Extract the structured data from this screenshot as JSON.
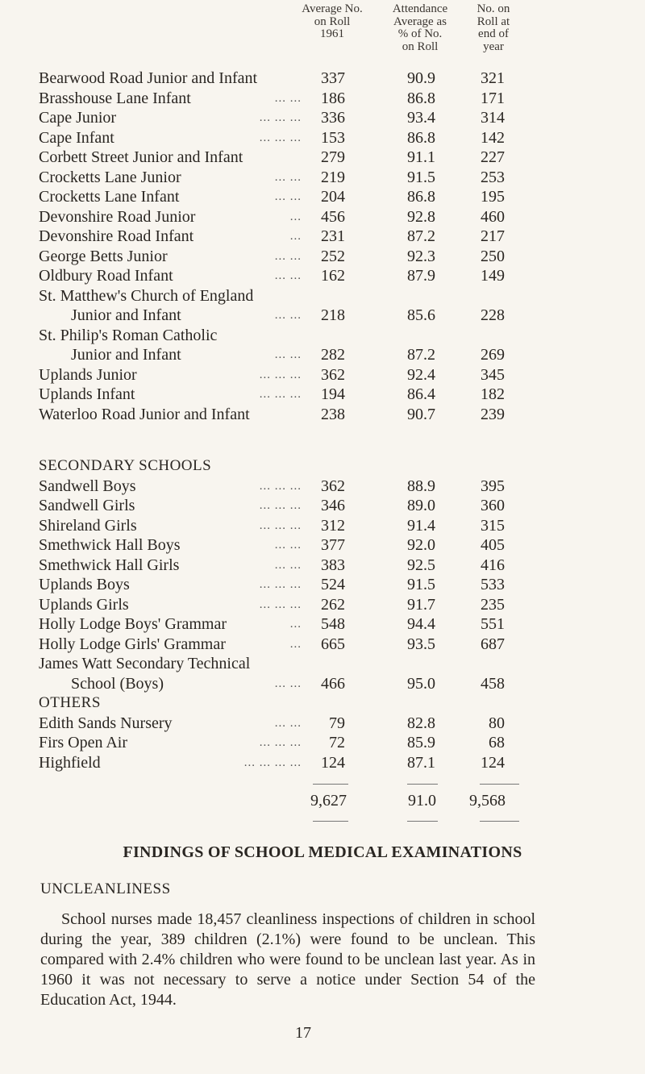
{
  "headers": {
    "col1": [
      "Average No.",
      "on Roll",
      "1961"
    ],
    "col2": [
      "Attendance",
      "Average as",
      "% of No.",
      "on Roll"
    ],
    "col3": [
      "No. on",
      "Roll at",
      "end of",
      "year"
    ]
  },
  "rows": [
    {
      "name": "Bearwood Road Junior and Infant",
      "leader": "",
      "avg_roll": "337",
      "attendance": "90.9",
      "end_roll": "321"
    },
    {
      "name": "Brasshouse Lane Infant",
      "leader": "... ...",
      "avg_roll": "186",
      "attendance": "86.8",
      "end_roll": "171"
    },
    {
      "name": "Cape Junior",
      "leader": "... ... ...",
      "avg_roll": "336",
      "attendance": "93.4",
      "end_roll": "314"
    },
    {
      "name": "Cape Infant",
      "leader": "... ... ...",
      "avg_roll": "153",
      "attendance": "86.8",
      "end_roll": "142"
    },
    {
      "name": "Corbett Street Junior and Infant",
      "leader": "",
      "avg_roll": "279",
      "attendance": "91.1",
      "end_roll": "227"
    },
    {
      "name": "Crocketts Lane Junior",
      "leader": "... ...",
      "avg_roll": "219",
      "attendance": "91.5",
      "end_roll": "253"
    },
    {
      "name": "Crocketts Lane Infant",
      "leader": "... ...",
      "avg_roll": "204",
      "attendance": "86.8",
      "end_roll": "195"
    },
    {
      "name": "Devonshire Road Junior",
      "leader": "...",
      "avg_roll": "456",
      "attendance": "92.8",
      "end_roll": "460"
    },
    {
      "name": "Devonshire Road Infant",
      "leader": "...",
      "avg_roll": "231",
      "attendance": "87.2",
      "end_roll": "217"
    },
    {
      "name": "George Betts Junior",
      "leader": "... ...",
      "avg_roll": "252",
      "attendance": "92.3",
      "end_roll": "250"
    },
    {
      "name": "Oldbury Road Infant",
      "leader": "... ...",
      "avg_roll": "162",
      "attendance": "87.9",
      "end_roll": "149"
    },
    {
      "name": "St. Matthew's Church of England",
      "leader": ""
    },
    {
      "name": "Junior and Infant",
      "leader": "... ...",
      "indent": true,
      "avg_roll": "218",
      "attendance": "85.6",
      "end_roll": "228"
    },
    {
      "name": "St. Philip's Roman Catholic",
      "leader": ""
    },
    {
      "name": "Junior and Infant",
      "leader": "... ...",
      "indent": true,
      "avg_roll": "282",
      "attendance": "87.2",
      "end_roll": "269"
    },
    {
      "name": "Uplands Junior",
      "leader": "... ... ...",
      "avg_roll": "362",
      "attendance": "92.4",
      "end_roll": "345"
    },
    {
      "name": "Uplands Infant",
      "leader": "... ... ...",
      "avg_roll": "194",
      "attendance": "86.4",
      "end_roll": "182"
    },
    {
      "name": "Waterloo Road Junior and Infant",
      "leader": "",
      "avg_roll": "238",
      "attendance": "90.7",
      "end_roll": "239"
    },
    {
      "gap": true
    },
    {
      "section": "SECONDARY SCHOOLS"
    },
    {
      "name": "Sandwell Boys",
      "leader": "... ... ...",
      "avg_roll": "362",
      "attendance": "88.9",
      "end_roll": "395"
    },
    {
      "name": "Sandwell Girls",
      "leader": "... ... ...",
      "avg_roll": "346",
      "attendance": "89.0",
      "end_roll": "360"
    },
    {
      "name": "Shireland Girls",
      "leader": "... ... ...",
      "avg_roll": "312",
      "attendance": "91.4",
      "end_roll": "315"
    },
    {
      "name": "Smethwick Hall Boys",
      "leader": "... ...",
      "avg_roll": "377",
      "attendance": "92.0",
      "end_roll": "405"
    },
    {
      "name": "Smethwick Hall Girls",
      "leader": "... ...",
      "avg_roll": "383",
      "attendance": "92.5",
      "end_roll": "416"
    },
    {
      "name": "Uplands Boys",
      "leader": "... ... ...",
      "avg_roll": "524",
      "attendance": "91.5",
      "end_roll": "533"
    },
    {
      "name": "Uplands Girls",
      "leader": "... ... ...",
      "avg_roll": "262",
      "attendance": "91.7",
      "end_roll": "235"
    },
    {
      "name": "Holly Lodge Boys' Grammar",
      "leader": "...",
      "avg_roll": "548",
      "attendance": "94.4",
      "end_roll": "551"
    },
    {
      "name": "Holly Lodge Girls' Grammar",
      "leader": "...",
      "avg_roll": "665",
      "attendance": "93.5",
      "end_roll": "687"
    },
    {
      "name": "James Watt Secondary Technical",
      "leader": ""
    },
    {
      "name": "School (Boys)",
      "leader": "... ...",
      "indent": true,
      "avg_roll": "466",
      "attendance": "95.0",
      "end_roll": "458"
    },
    {
      "section": "OTHERS"
    },
    {
      "name": "Edith Sands Nursery",
      "leader": "... ...",
      "avg_roll": "79",
      "attendance": "82.8",
      "end_roll": "80"
    },
    {
      "name": "Firs Open Air",
      "leader": "... ... ...",
      "avg_roll": "72",
      "attendance": "85.9",
      "end_roll": "68"
    },
    {
      "name": "Highfield",
      "leader": "... ... ... ...",
      "avg_roll": "124",
      "attendance": "87.1",
      "end_roll": "124"
    }
  ],
  "totals": {
    "avg_roll": "9,627",
    "attendance": "91.0",
    "end_roll": "9,568"
  },
  "findings_title": "FINDINGS OF SCHOOL MEDICAL EXAMINATIONS",
  "subheading": "UNCLEANLINESS",
  "paragraph": "School nurses made 18,457 cleanliness inspections of children in school during the year, 389 children (2.1%) were found to be unclean. This compared with 2.4% children who were found to be unclean last year. As in 1960 it was not necessary to serve a notice under Section 54 of the Education Act, 1944.",
  "page_number": "17"
}
